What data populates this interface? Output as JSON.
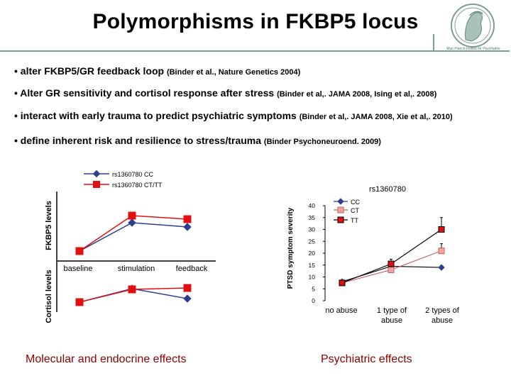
{
  "title": "Polymorphisms in FKBP5 locus",
  "logo": {
    "institute_text": "Max-Planck-Institut für Psychiatrie"
  },
  "bullets": [
    {
      "text": "• alter FKBP5/GR feedback loop ",
      "cite": "(Binder et al., Nature Genetics 2004)"
    },
    {
      "text": "• Alter GR sensitivity and cortisol response after stress ",
      "cite": "(Binder et al,. JAMA 2008, Ising et al,. 2008)"
    },
    {
      "text": "• interact with early trauma to predict psychiatric symptoms ",
      "cite": "(Binder et al,. JAMA 2008, Xie et al,. 2010)"
    },
    {
      "text": "• define inherent risk and resilience to stress/trauma ",
      "cite": "(Binder Psychoneuroend. 2009)"
    }
  ],
  "captions": {
    "left": "Molecular and endocrine effects",
    "right": "Psychiatric effects"
  },
  "colors": {
    "cc": "#2f3f8f",
    "ct_tt": "#e01010",
    "pink": "#f4a3a3",
    "caption": "#8b0000",
    "rule": "#7c9d8f"
  },
  "chart_data": [
    {
      "type": "line",
      "legend": [
        "rs1360780 CC",
        "rs1360780 CT/TT"
      ],
      "categories": [
        "baseline",
        "stimulation",
        "feedback"
      ],
      "panels": [
        {
          "ylabel": "FKBP5 levels",
          "series": [
            {
              "name": "rs1360780 CC",
              "values": [
                0.0,
                0.8,
                0.68
              ]
            },
            {
              "name": "rs1360780 CT/TT",
              "values": [
                0.0,
                1.0,
                0.9
              ]
            }
          ]
        },
        {
          "ylabel": "Cortisol levels",
          "series": [
            {
              "name": "rs1360780 CC",
              "values": [
                0.0,
                0.95,
                0.25
              ]
            },
            {
              "name": "rs1360780 CT/TT",
              "values": [
                0.0,
                0.9,
                1.0
              ]
            }
          ]
        }
      ]
    },
    {
      "type": "line",
      "title": "rs1360780",
      "ylabel": "PTSD symptom severity",
      "ylim": [
        0,
        40
      ],
      "yticks": [
        "0",
        "5",
        "10",
        "15",
        "20",
        "25",
        "30",
        "35",
        "40"
      ],
      "categories": [
        "no abuse",
        "1 type of abuse",
        "2 types of abuse"
      ],
      "series": [
        {
          "name": "CC",
          "values": [
            8,
            14.5,
            14
          ]
        },
        {
          "name": "CT",
          "values": [
            7.5,
            13,
            21
          ]
        },
        {
          "name": "TT",
          "values": [
            7.5,
            15.5,
            30
          ]
        }
      ]
    }
  ]
}
